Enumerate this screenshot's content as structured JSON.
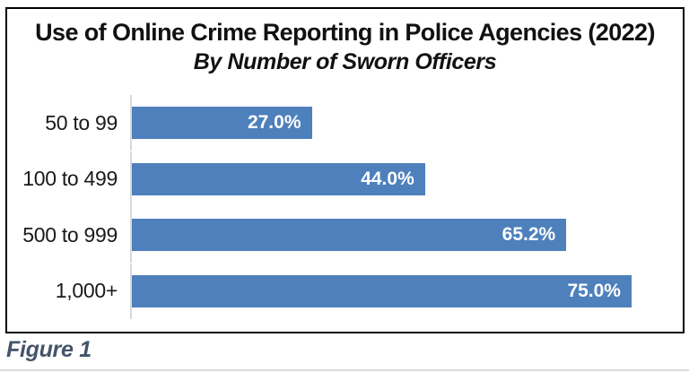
{
  "chart_data": {
    "type": "bar",
    "orientation": "horizontal",
    "title": "Use of Online Crime Reporting in Police Agencies (2022)",
    "subtitle": "By Number of Sworn Officers",
    "categories": [
      "50 to 99",
      "100 to 499",
      "500 to 999",
      "1,000+"
    ],
    "values": [
      27.0,
      44.0,
      65.2,
      75.0
    ],
    "value_labels": [
      "27.0%",
      "44.0%",
      "65.2%",
      "75.0%"
    ],
    "xlabel": "",
    "ylabel": "",
    "xlim": [
      0,
      81.6
    ],
    "grid": false,
    "legend": "none",
    "data_labels_position": "inside-end",
    "bar_color": "#4E80BC",
    "value_label_color": "#FFFFFF",
    "axis_line_color": "#D9D9D9",
    "frame_border_color": "#000000"
  },
  "caption": {
    "label": "Figure 1",
    "color": "#44546A"
  }
}
